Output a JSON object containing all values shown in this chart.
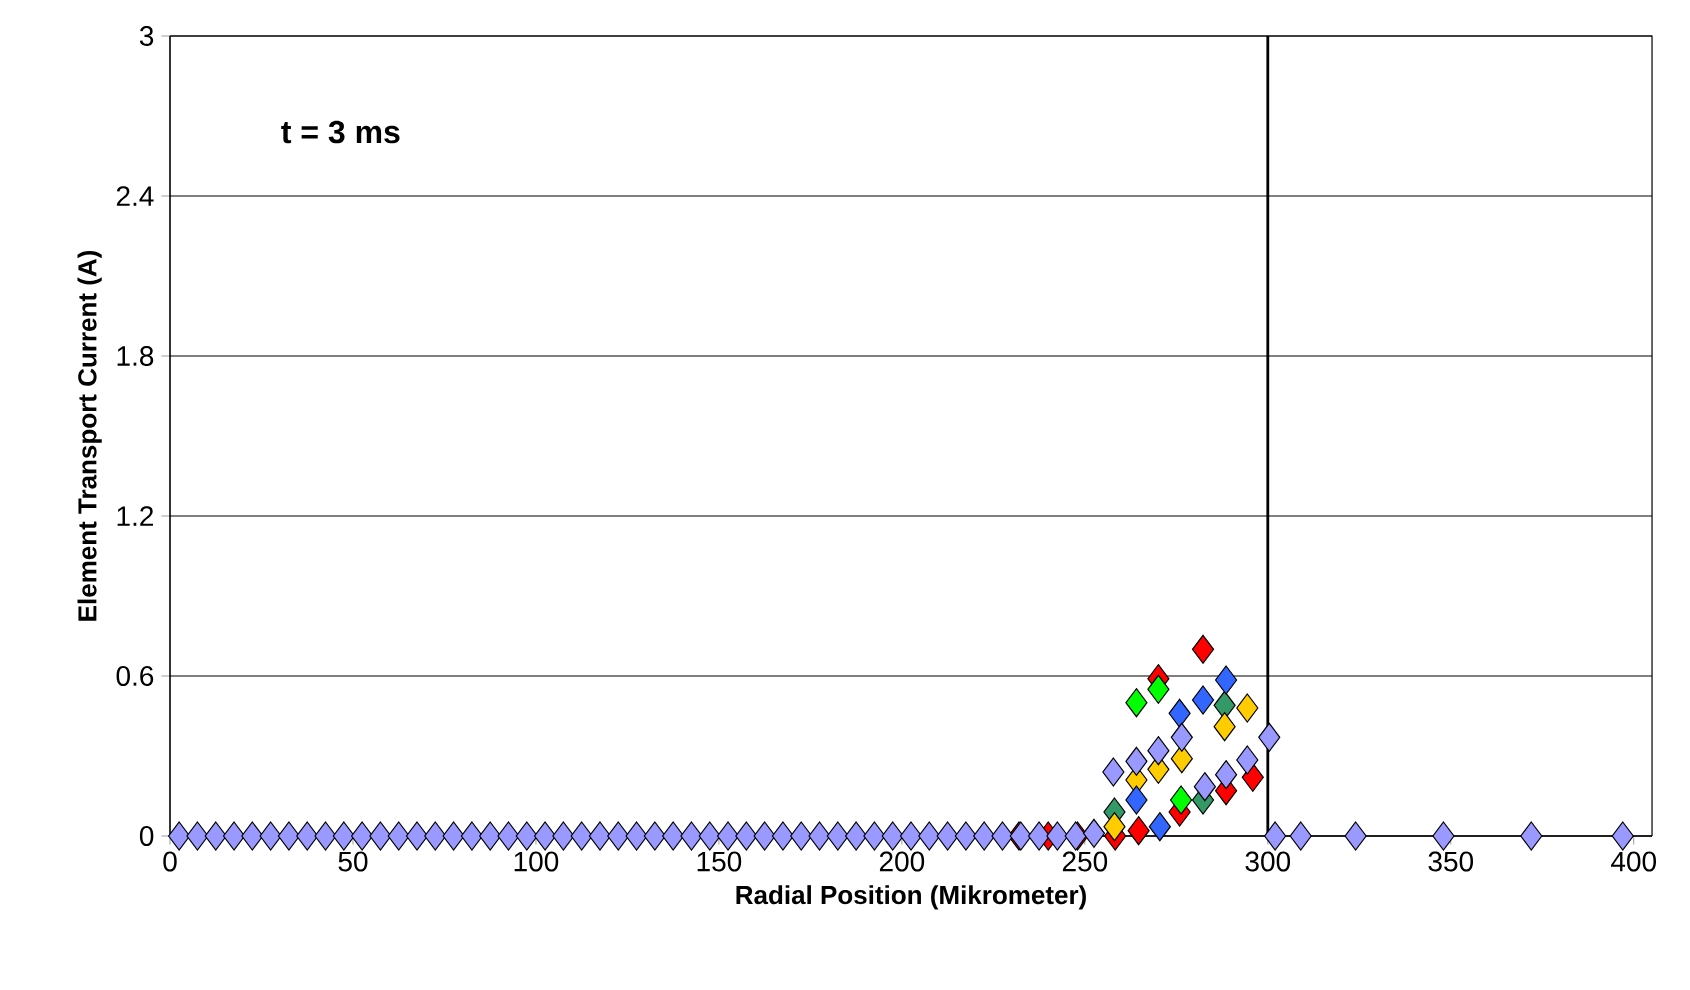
{
  "chart_data": {
    "type": "scatter",
    "xlabel": "Radial Position (Mikrometer)",
    "ylabel": "Element Transport Current (A)",
    "annotations": [
      "t = 3 ms"
    ],
    "xlim": [
      0,
      405
    ],
    "ylim": [
      0,
      3
    ],
    "xticks": [
      0,
      50,
      100,
      150,
      200,
      250,
      300,
      350,
      400
    ],
    "yticks": [
      0,
      0.6,
      1.2,
      1.8,
      2.4,
      3
    ],
    "grid": "y",
    "marker": "diamond",
    "ref_lines": [
      {
        "axis": "x",
        "value": 300,
        "color": "#000000"
      }
    ],
    "series": [
      {
        "color": "#ff0000",
        "x": [
          232,
          240,
          248,
          258.3,
          264.7,
          270.1,
          275.9,
          282.3,
          288.6,
          295.9
        ],
        "values": [
          0,
          0,
          0,
          0,
          0.02,
          0.59,
          0.09,
          0.7,
          0.17,
          0.22
        ]
      },
      {
        "color": "#00ff00",
        "x": [
          264.1,
          270.1,
          276.3
        ],
        "values": [
          0.5,
          0.55,
          0.135
        ]
      },
      {
        "color": "#339966",
        "x": [
          258.1,
          282.3,
          288.2
        ],
        "values": [
          0.09,
          0.135,
          0.49
        ]
      },
      {
        "color": "#ffcc00",
        "x": [
          258.1,
          264.1,
          270.1,
          276.5,
          288.2,
          294.4
        ],
        "values": [
          0.035,
          0.21,
          0.25,
          0.29,
          0.41,
          0.48
        ]
      },
      {
        "color": "#3366ff",
        "x": [
          264.1,
          270.5,
          275.9,
          282.3,
          288.6
        ],
        "values": [
          0.135,
          0.035,
          0.46,
          0.51,
          0.585
        ]
      },
      {
        "color": "#9999ff",
        "x": [
          2.5,
          7.5,
          12.5,
          17.5,
          22.5,
          27.5,
          32.5,
          37.5,
          42.5,
          47.5,
          52.5,
          57.5,
          62.5,
          67.5,
          72.5,
          77.5,
          82.5,
          87.5,
          92.5,
          97.5,
          102.5,
          107.5,
          112.5,
          117.5,
          122.5,
          127.5,
          132.5,
          137.5,
          142.5,
          147.5,
          152.5,
          157.5,
          162.5,
          167.5,
          172.5,
          177.5,
          182.5,
          187.5,
          192.5,
          197.5,
          202.5,
          207.5,
          212.5,
          217.5,
          222.5,
          227.5,
          232.5,
          237.5,
          242.5,
          247.5,
          252.5,
          257.8,
          264.1,
          270.1,
          276.5,
          282.8,
          288.6,
          294.4,
          300.4,
          302,
          309,
          324,
          348,
          372,
          397
        ],
        "values": [
          0,
          0,
          0,
          0,
          0,
          0,
          0,
          0,
          0,
          0,
          0,
          0,
          0,
          0,
          0,
          0,
          0,
          0,
          0,
          0,
          0,
          0,
          0,
          0,
          0,
          0,
          0,
          0,
          0,
          0,
          0,
          0,
          0,
          0,
          0,
          0,
          0,
          0,
          0,
          0,
          0,
          0,
          0,
          0,
          0,
          0,
          0,
          0,
          0,
          0,
          0.01,
          0.24,
          0.28,
          0.32,
          0.37,
          0.185,
          0.23,
          0.285,
          0.37,
          0,
          0,
          0,
          0,
          0,
          0
        ]
      }
    ]
  }
}
